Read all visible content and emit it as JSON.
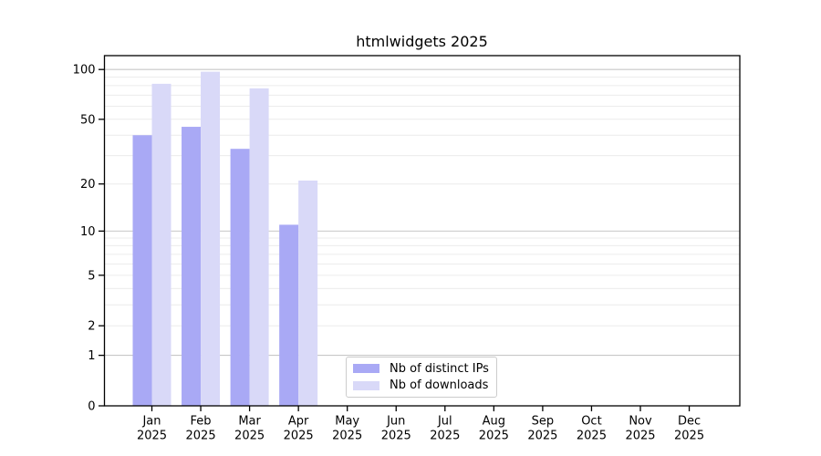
{
  "figure": {
    "background_color": "#ffffff",
    "text_color": "#000000"
  },
  "chart_data": {
    "type": "bar",
    "title": "htmlwidgets 2025",
    "scale": "log1p",
    "grid": true,
    "legend_position": "bottom-center",
    "xlabel": "",
    "ylabel": "",
    "ylim": [
      0,
      100
    ],
    "yticks": [
      0,
      1,
      2,
      5,
      10,
      20,
      50,
      100
    ],
    "major_gridlines": [
      1,
      10,
      100
    ],
    "minor_gridlines": [
      2,
      3,
      4,
      5,
      6,
      7,
      8,
      9,
      20,
      30,
      40,
      50,
      60,
      70,
      80,
      90
    ],
    "categories": [
      "Jan",
      "Feb",
      "Mar",
      "Apr",
      "May",
      "Jun",
      "Jul",
      "Aug",
      "Sep",
      "Oct",
      "Nov",
      "Dec"
    ],
    "category_year_line": "2025",
    "series": [
      {
        "name": "Nb of distinct IPs",
        "color": "#a9a9f5",
        "values": [
          40,
          45,
          33,
          11,
          0,
          0,
          0,
          0,
          0,
          0,
          0,
          0
        ]
      },
      {
        "name": "Nb of downloads",
        "color": "#d9d9f8",
        "values": [
          82,
          97,
          77,
          21,
          0,
          0,
          0,
          0,
          0,
          0,
          0,
          0
        ]
      }
    ],
    "colors": {
      "axis": "#000000",
      "major_grid": "#c8c8c8",
      "minor_grid": "#ececec",
      "legend_border": "#cccccc"
    }
  }
}
